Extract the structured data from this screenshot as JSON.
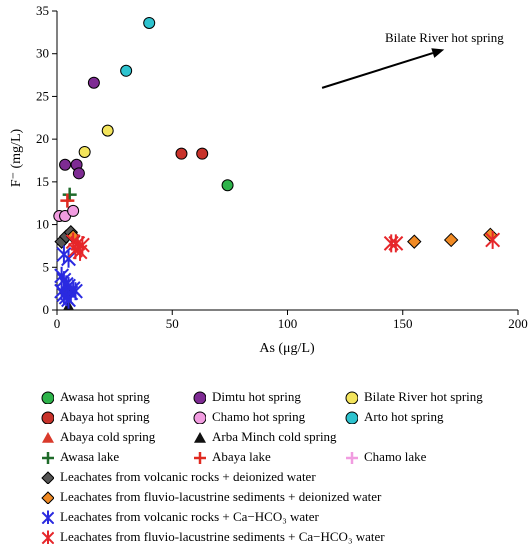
{
  "chart_data": {
    "type": "scatter",
    "xlabel": "As (μg/L)",
    "ylabel": "F⁻ (mg/L)",
    "xlim": [
      0,
      200
    ],
    "ylim": [
      0,
      35
    ],
    "xticks": [
      0,
      50,
      100,
      150,
      200
    ],
    "yticks": [
      0,
      5,
      10,
      15,
      20,
      25,
      30,
      35
    ],
    "grid": false,
    "legend_position": "bottom",
    "annotation": {
      "text": "Bilate River hot spring",
      "arrow": {
        "from": [
          115,
          26
        ],
        "to": [
          168,
          30.5
        ]
      }
    },
    "series": [
      {
        "name": "Awasa hot spring",
        "marker": "circle",
        "color": "#2db34a",
        "points": [
          [
            74,
            14.6
          ]
        ]
      },
      {
        "name": "Dimtu hot spring",
        "marker": "circle",
        "color": "#7e2b93",
        "points": [
          [
            3.5,
            17.0
          ],
          [
            8.5,
            17.0
          ],
          [
            9.5,
            16.0
          ],
          [
            16,
            26.6
          ]
        ]
      },
      {
        "name": "Bilate River hot spring",
        "marker": "circle",
        "color": "#f3e45c",
        "points": [
          [
            12,
            18.5
          ],
          [
            22,
            21.0
          ]
        ]
      },
      {
        "name": "Abaya hot spring",
        "marker": "circle",
        "color": "#c8322a",
        "points": [
          [
            54,
            18.3
          ],
          [
            63,
            18.3
          ]
        ]
      },
      {
        "name": "Chamo hot spring",
        "marker": "circle",
        "color": "#f19ce0",
        "points": [
          [
            1,
            11.0
          ],
          [
            3.5,
            11.0
          ],
          [
            7,
            11.6
          ]
        ]
      },
      {
        "name": "Arto hot spring",
        "marker": "circle",
        "color": "#2ec3cf",
        "points": [
          [
            30,
            28.0
          ],
          [
            40,
            33.6
          ]
        ]
      },
      {
        "name": "Abaya cold spring",
        "marker": "triangle",
        "color": "#d93a2b",
        "points": []
      },
      {
        "name": "Arba Minch cold spring",
        "marker": "triangle",
        "color": "#111111",
        "points": [
          [
            5,
            0.5
          ]
        ]
      },
      {
        "name": "Awasa lake",
        "marker": "plus",
        "color": "#1f6b2a",
        "points": [
          [
            5.5,
            13.5
          ]
        ]
      },
      {
        "name": "Abaya lake",
        "marker": "plus",
        "color": "#e02a20",
        "points": [
          [
            4.5,
            12.8
          ]
        ]
      },
      {
        "name": "Chamo lake",
        "marker": "plus",
        "color": "#f19ce0",
        "points": []
      },
      {
        "name": "Leachates from volcanic rocks + deionized water",
        "marker": "diamond",
        "color": "#555555",
        "points": [
          [
            2,
            8.0
          ],
          [
            4,
            8.6
          ],
          [
            6,
            9.1
          ],
          [
            4,
            2.0
          ]
        ]
      },
      {
        "name": "Leachates from fluvio-lacustrine sediments + deionized water",
        "marker": "diamond",
        "color": "#f08a24",
        "points": [
          [
            7,
            8.6
          ],
          [
            155,
            8.0
          ],
          [
            171,
            8.2
          ],
          [
            188,
            8.8
          ]
        ]
      },
      {
        "name": "Leachates from volcanic rocks + Ca−HCO₃ water",
        "marker": "asterisk",
        "color": "#2a2ae0",
        "points": [
          [
            3,
            6.5
          ],
          [
            5,
            6.0
          ],
          [
            2,
            4.0
          ],
          [
            3,
            3.5
          ],
          [
            4,
            3.0
          ],
          [
            2,
            2.2
          ],
          [
            3,
            1.8
          ],
          [
            4,
            1.5
          ],
          [
            5,
            1.2
          ],
          [
            6,
            2.0
          ],
          [
            7,
            2.5
          ],
          [
            8,
            2.2
          ],
          [
            5,
            2.8
          ]
        ]
      },
      {
        "name": "Leachates from fluvio-lacustrine sediments + Ca−HCO₃ water",
        "marker": "asterisk",
        "color": "#e6262a",
        "points": [
          [
            7,
            8.0
          ],
          [
            9,
            7.8
          ],
          [
            11,
            7.6
          ],
          [
            8,
            7.0
          ],
          [
            10,
            6.8
          ],
          [
            145,
            7.8
          ],
          [
            147,
            7.8
          ],
          [
            189,
            8.2
          ]
        ]
      }
    ]
  }
}
